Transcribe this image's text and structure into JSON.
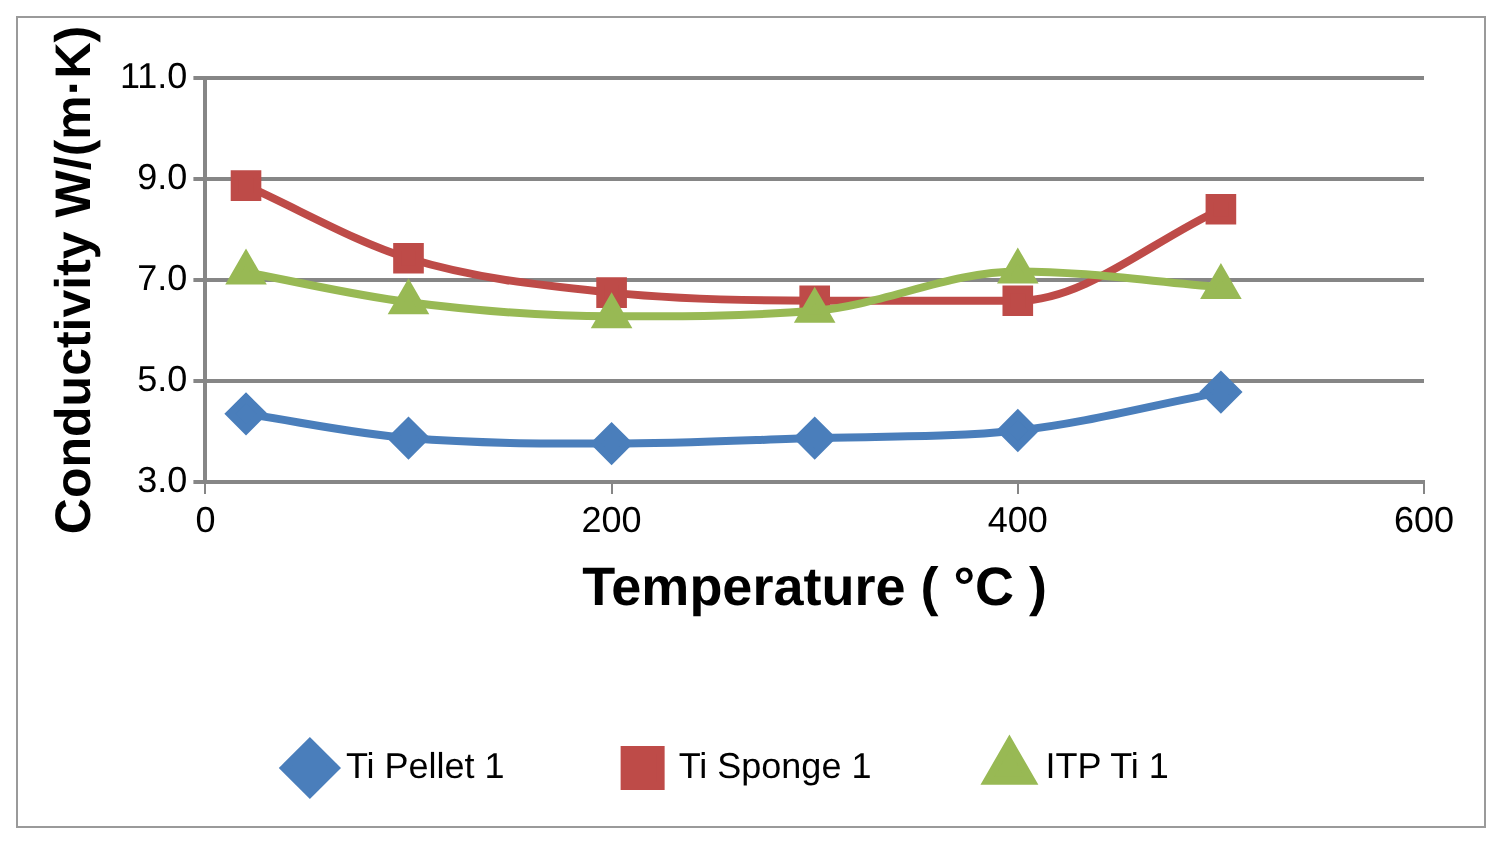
{
  "chart_data": {
    "type": "line",
    "xlabel": "Temperature ( °C )",
    "ylabel": "Conductivity W/(m·K)",
    "x": [
      20,
      100,
      200,
      300,
      400,
      500
    ],
    "series": [
      {
        "name": "Ti Pellet 1",
        "color": "#4a7ebb",
        "marker": "diamond",
        "values": [
          4.35,
          3.87,
          3.76,
          3.87,
          4.02,
          4.78
        ]
      },
      {
        "name": "Ti Sponge 1",
        "color": "#be4b48",
        "marker": "square",
        "values": [
          8.87,
          7.43,
          6.75,
          6.59,
          6.59,
          8.4
        ]
      },
      {
        "name": "ITP Ti 1",
        "color": "#98b954",
        "marker": "triangle",
        "values": [
          7.15,
          6.56,
          6.28,
          6.39,
          7.17,
          6.86
        ]
      }
    ],
    "xlim": [
      0,
      600
    ],
    "xticks": [
      0,
      200,
      400,
      600
    ],
    "ylim": [
      3,
      11
    ],
    "yticks": [
      {
        "value": 3,
        "label": "3.0"
      },
      {
        "value": 5,
        "label": "5.0"
      },
      {
        "value": 7,
        "label": "7.0"
      },
      {
        "value": 9,
        "label": "9.0"
      },
      {
        "value": 11,
        "label": "11.0"
      }
    ],
    "grid": "y",
    "legend": "bottom"
  }
}
